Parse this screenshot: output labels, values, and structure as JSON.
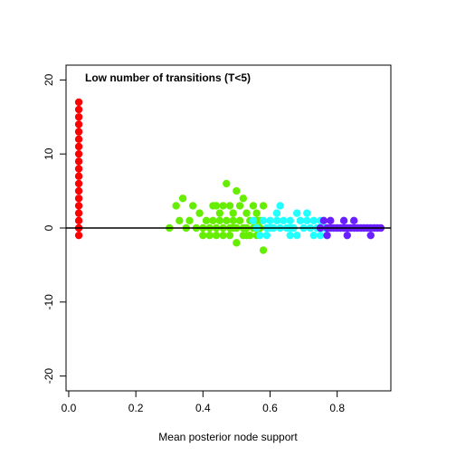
{
  "chart_data": {
    "type": "scatter",
    "title": "Low number of transitions (T<5)",
    "xlabel": "Mean posterior node support",
    "ylabel": "",
    "xlim": [
      -0.008,
      0.96
    ],
    "ylim": [
      -22,
      22
    ],
    "x_ticks": [
      0.0,
      0.2,
      0.4,
      0.6,
      0.8
    ],
    "x_tick_labels": [
      "0.0",
      "0.2",
      "0.4",
      "0.6",
      "0.8"
    ],
    "y_ticks": [
      -20,
      -10,
      0,
      10,
      20
    ],
    "y_tick_labels": [
      "-20",
      "-10",
      "0",
      "10",
      "20"
    ],
    "reference_line_y": 0,
    "box": true,
    "grid": false,
    "series": [
      {
        "color": "#ff0000",
        "points": [
          [
            0.03,
            17
          ],
          [
            0.03,
            16
          ],
          [
            0.03,
            15
          ],
          [
            0.03,
            14
          ],
          [
            0.03,
            13
          ],
          [
            0.03,
            12
          ],
          [
            0.03,
            11
          ],
          [
            0.03,
            10
          ],
          [
            0.03,
            9
          ],
          [
            0.03,
            8
          ],
          [
            0.03,
            7
          ],
          [
            0.03,
            6
          ],
          [
            0.03,
            5
          ],
          [
            0.03,
            4
          ],
          [
            0.03,
            3
          ],
          [
            0.03,
            2
          ],
          [
            0.03,
            1
          ],
          [
            0.03,
            0
          ],
          [
            0.03,
            -1
          ]
        ]
      },
      {
        "color": "#66ee00",
        "points": [
          [
            0.3,
            0
          ],
          [
            0.32,
            3
          ],
          [
            0.33,
            1
          ],
          [
            0.34,
            4
          ],
          [
            0.35,
            0
          ],
          [
            0.36,
            1
          ],
          [
            0.37,
            3
          ],
          [
            0.38,
            0
          ],
          [
            0.39,
            2
          ],
          [
            0.4,
            0
          ],
          [
            0.4,
            -1
          ],
          [
            0.41,
            1
          ],
          [
            0.42,
            0
          ],
          [
            0.42,
            -1
          ],
          [
            0.43,
            3
          ],
          [
            0.43,
            1
          ],
          [
            0.44,
            -1
          ],
          [
            0.44,
            0
          ],
          [
            0.45,
            2
          ],
          [
            0.45,
            1
          ],
          [
            0.46,
            0
          ],
          [
            0.46,
            3
          ],
          [
            0.47,
            1
          ],
          [
            0.47,
            6
          ],
          [
            0.48,
            0
          ],
          [
            0.48,
            -1
          ],
          [
            0.48,
            3
          ],
          [
            0.49,
            1
          ],
          [
            0.49,
            2
          ],
          [
            0.5,
            5
          ],
          [
            0.5,
            0
          ],
          [
            0.5,
            -2
          ],
          [
            0.51,
            3
          ],
          [
            0.51,
            1
          ],
          [
            0.52,
            4
          ],
          [
            0.52,
            -1
          ],
          [
            0.53,
            0
          ],
          [
            0.53,
            2
          ],
          [
            0.54,
            1
          ],
          [
            0.54,
            -1
          ],
          [
            0.55,
            3
          ],
          [
            0.55,
            0
          ],
          [
            0.56,
            2
          ],
          [
            0.56,
            -1
          ],
          [
            0.57,
            1
          ],
          [
            0.57,
            0
          ],
          [
            0.58,
            -3
          ],
          [
            0.58,
            3
          ],
          [
            0.56,
            1
          ],
          [
            0.52,
            0
          ],
          [
            0.46,
            -1
          ],
          [
            0.44,
            3
          ],
          [
            0.49,
            0
          ],
          [
            0.53,
            -1
          ]
        ]
      },
      {
        "color": "#22ffff",
        "points": [
          [
            0.55,
            1
          ],
          [
            0.56,
            0
          ],
          [
            0.57,
            -1
          ],
          [
            0.58,
            1
          ],
          [
            0.59,
            0
          ],
          [
            0.59,
            -1
          ],
          [
            0.6,
            1
          ],
          [
            0.61,
            0
          ],
          [
            0.62,
            2
          ],
          [
            0.62,
            1
          ],
          [
            0.63,
            0
          ],
          [
            0.63,
            3
          ],
          [
            0.64,
            1
          ],
          [
            0.65,
            0
          ],
          [
            0.66,
            -1
          ],
          [
            0.66,
            1
          ],
          [
            0.67,
            0
          ],
          [
            0.68,
            2
          ],
          [
            0.68,
            -1
          ],
          [
            0.69,
            1
          ],
          [
            0.7,
            0
          ],
          [
            0.71,
            1
          ],
          [
            0.71,
            2
          ],
          [
            0.72,
            0
          ],
          [
            0.73,
            1
          ],
          [
            0.73,
            -1
          ],
          [
            0.74,
            0
          ],
          [
            0.75,
            -1
          ],
          [
            0.75,
            1
          ],
          [
            0.76,
            0
          ],
          [
            0.77,
            -1
          ],
          [
            0.77,
            0
          ],
          [
            0.66,
            0
          ],
          [
            0.6,
            0
          ]
        ]
      },
      {
        "color": "#6a1fff",
        "points": [
          [
            0.75,
            0
          ],
          [
            0.76,
            1
          ],
          [
            0.77,
            0
          ],
          [
            0.77,
            -1
          ],
          [
            0.78,
            1
          ],
          [
            0.78,
            0
          ],
          [
            0.79,
            0
          ],
          [
            0.8,
            0
          ],
          [
            0.81,
            0
          ],
          [
            0.82,
            1
          ],
          [
            0.82,
            0
          ],
          [
            0.83,
            0
          ],
          [
            0.83,
            -1
          ],
          [
            0.84,
            0
          ],
          [
            0.85,
            1
          ],
          [
            0.85,
            0
          ],
          [
            0.86,
            0
          ],
          [
            0.87,
            0
          ],
          [
            0.88,
            0
          ],
          [
            0.89,
            0
          ],
          [
            0.9,
            0
          ],
          [
            0.9,
            -1
          ],
          [
            0.91,
            0
          ],
          [
            0.92,
            0
          ],
          [
            0.93,
            0
          ]
        ]
      }
    ]
  }
}
